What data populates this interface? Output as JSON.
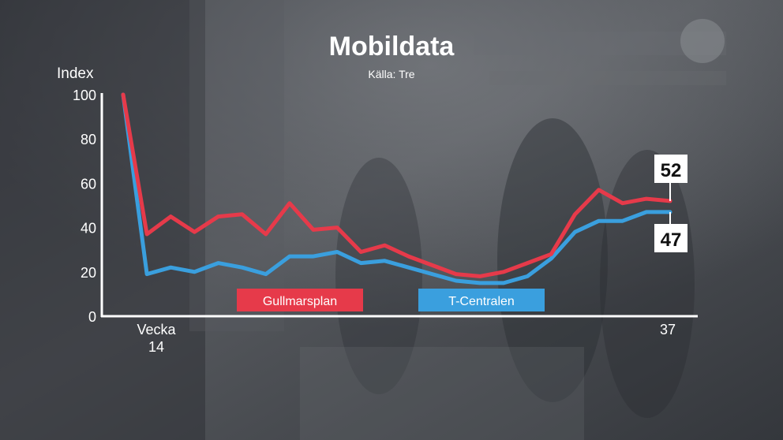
{
  "colors": {
    "gullmarsplan": "#e63a4a",
    "t_centralen": "#3a9fde",
    "axis": "#ffffff",
    "text": "#ffffff",
    "end_label_bg": "#ffffff",
    "end_label_text": "#111111"
  },
  "chart_data": {
    "type": "line",
    "title": "Mobildata",
    "subtitle": "Källa: Tre",
    "ylabel": "Index",
    "xlabel": "",
    "ylim": [
      0,
      100
    ],
    "yticks": [
      0,
      20,
      40,
      60,
      80,
      100
    ],
    "x": [
      14,
      15,
      16,
      17,
      18,
      19,
      20,
      21,
      22,
      23,
      24,
      25,
      26,
      27,
      28,
      29,
      30,
      31,
      32,
      33,
      34,
      35,
      36,
      37
    ],
    "xlim": [
      14,
      37
    ],
    "x_tick_labels": [
      {
        "x": 14,
        "line1": "Vecka",
        "line2": "14"
      },
      {
        "x": 37,
        "line1": "37",
        "line2": ""
      }
    ],
    "legend_placement": "bottom",
    "grid": false,
    "series": [
      {
        "name": "Gullmarsplan",
        "color_key": "gullmarsplan",
        "values": [
          100,
          37,
          45,
          38,
          45,
          46,
          37,
          51,
          39,
          40,
          29,
          32,
          27,
          23,
          19,
          18,
          20,
          24,
          28,
          46,
          57,
          51,
          53,
          52
        ],
        "end_label": "52"
      },
      {
        "name": "T-Centralen",
        "color_key": "t_centralen",
        "values": [
          100,
          19,
          22,
          20,
          24,
          22,
          19,
          27,
          27,
          29,
          24,
          25,
          22,
          19,
          16,
          15,
          15,
          18,
          26,
          38,
          43,
          43,
          47,
          47
        ],
        "end_label": "47"
      }
    ]
  }
}
